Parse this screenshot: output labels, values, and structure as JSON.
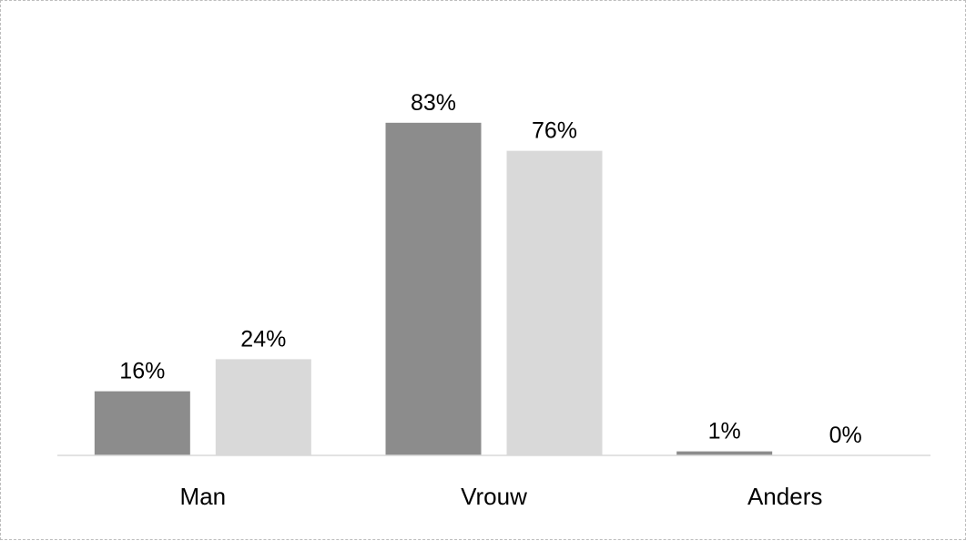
{
  "chart_data": {
    "type": "bar",
    "categories": [
      "Man",
      "Vrouw",
      "Anders"
    ],
    "series": [
      {
        "values": [
          16,
          83,
          1
        ],
        "labels": [
          "16%",
          "83%",
          "1%"
        ],
        "color": "#8c8c8c"
      },
      {
        "values": [
          24,
          76,
          0
        ],
        "labels": [
          "24%",
          "76%",
          "0%"
        ],
        "color": "#d9d9d9"
      }
    ],
    "unit": "%",
    "ylim": [
      0,
      100
    ],
    "grid": false,
    "axis_color": "#d9d9d9"
  }
}
